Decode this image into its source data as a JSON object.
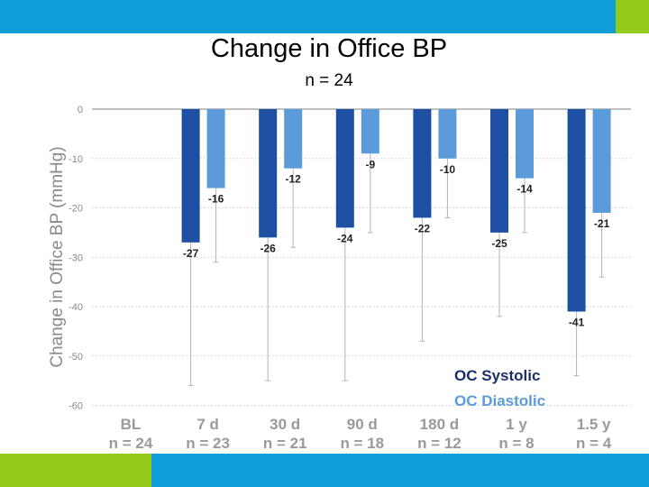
{
  "title": "Change in Office BP",
  "subtitle": "n = 24",
  "colors": {
    "band_blue": "#0f9ed8",
    "band_green": "#93cc1c",
    "systolic": "#1d4fa3",
    "diastolic": "#5b9bd9"
  },
  "chart_data": {
    "type": "bar",
    "title": "Change in Office BP",
    "subtitle": "n = 24",
    "ylabel": "Change in Office BP (mmHg)",
    "ylim": [
      -60,
      0
    ],
    "yticks": [
      0,
      -10,
      -20,
      -30,
      -40,
      -50,
      -60
    ],
    "grid": true,
    "legend_position": "bottom-right",
    "categories": [
      {
        "label": "BL",
        "n": "n = 24"
      },
      {
        "label": "7 d",
        "n": "n = 23"
      },
      {
        "label": "30 d",
        "n": "n = 21"
      },
      {
        "label": "90 d",
        "n": "n = 18"
      },
      {
        "label": "180 d",
        "n": "n = 12"
      },
      {
        "label": "1 y",
        "n": "n = 8"
      },
      {
        "label": "1.5 y",
        "n": "n = 4"
      }
    ],
    "series": [
      {
        "name": "OC Systolic",
        "color": "#1d4fa3",
        "values": [
          null,
          -27,
          -26,
          -24,
          -22,
          -25,
          -41
        ],
        "error_low": [
          null,
          -56,
          -55,
          -55,
          -47,
          -42,
          -54
        ]
      },
      {
        "name": "OC Diastolic",
        "color": "#5b9bd9",
        "values": [
          null,
          -16,
          -12,
          -9,
          -10,
          -14,
          -21
        ],
        "error_low": [
          null,
          -31,
          -28,
          -25,
          -22,
          -25,
          -34
        ]
      }
    ]
  }
}
